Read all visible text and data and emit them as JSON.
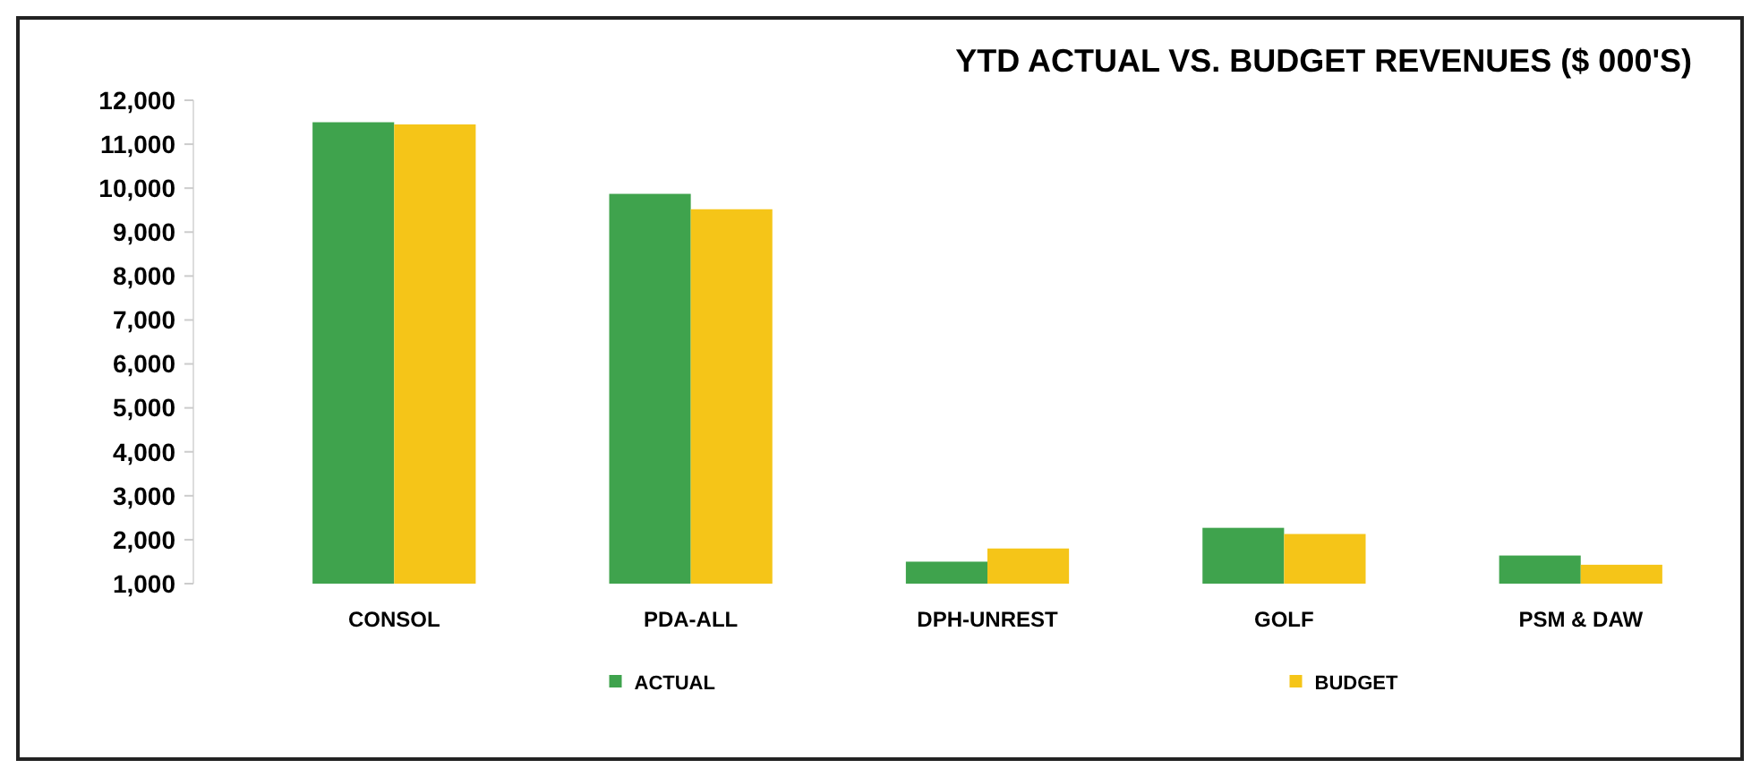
{
  "chart_data": {
    "type": "bar",
    "title": "YTD ACTUAL VS. BUDGET REVENUES ($ 000'S)",
    "categories": [
      "CONSOL",
      "PDA-ALL",
      "DPH-UNREST",
      "GOLF",
      "PSM & DAW"
    ],
    "series": [
      {
        "name": "ACTUAL",
        "color": "#3fa34d",
        "values": [
          11500,
          9870,
          1500,
          2270,
          1640
        ]
      },
      {
        "name": "BUDGET",
        "color": "#f5c518",
        "values": [
          11450,
          9520,
          1800,
          2130,
          1430
        ]
      }
    ],
    "ylim": [
      1000,
      12000
    ],
    "yticks": [
      {
        "value": 1000,
        "label": "1,000"
      },
      {
        "value": 2000,
        "label": "2,000"
      },
      {
        "value": 3000,
        "label": "3,000"
      },
      {
        "value": 4000,
        "label": "4,000"
      },
      {
        "value": 5000,
        "label": "5,000"
      },
      {
        "value": 6000,
        "label": "6,000"
      },
      {
        "value": 7000,
        "label": "7,000"
      },
      {
        "value": 8000,
        "label": "8,000"
      },
      {
        "value": 9000,
        "label": "9,000"
      },
      {
        "value": 10000,
        "label": "10,000"
      },
      {
        "value": 11000,
        "label": "11,000"
      },
      {
        "value": 12000,
        "label": "12,000"
      }
    ],
    "legend": "bottom"
  }
}
